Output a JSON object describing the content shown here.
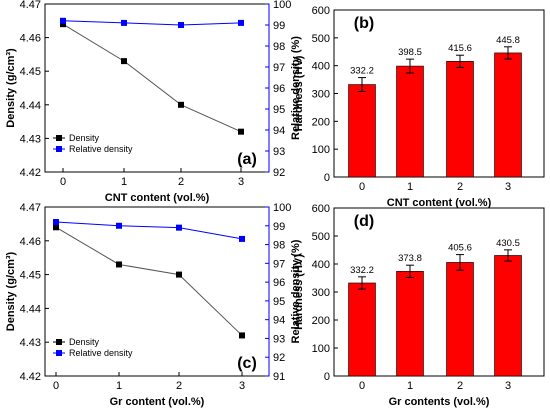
{
  "chart_data": [
    {
      "panel": "(a)",
      "type": "line",
      "categories": [
        "0",
        "1",
        "2",
        "3"
      ],
      "x": [
        0,
        1,
        2,
        3
      ],
      "xlabel": "CNT content (vol.%)",
      "ylabel_left": "Density (g/cm³)",
      "ylabel_right": "Relative density (%)",
      "ylim_left": [
        4.42,
        4.47
      ],
      "yticks_left": [
        "4.42",
        "4.43",
        "4.44",
        "4.45",
        "4.46",
        "4.47"
      ],
      "ylim_right": [
        92,
        100
      ],
      "yticks_right": [
        "92",
        "93",
        "94",
        "95",
        "96",
        "97",
        "98",
        "99",
        "100"
      ],
      "series": [
        {
          "name": "Density",
          "axis": "left",
          "color": "#000000",
          "values": [
            4.464,
            4.453,
            4.44,
            4.432
          ]
        },
        {
          "name": "Relative density",
          "axis": "right",
          "color": "#0000ff",
          "values": [
            99.2,
            99.1,
            99.0,
            99.1
          ]
        }
      ],
      "legend_position": "bottom-left"
    },
    {
      "panel": "(b)",
      "type": "bar",
      "categories": [
        "0",
        "1",
        "2",
        "3"
      ],
      "values": [
        332.2,
        398.5,
        415.6,
        445.8
      ],
      "errors": [
        25,
        25,
        22,
        22
      ],
      "data_labels": [
        "332.2",
        "398.5",
        "415.6",
        "445.8"
      ],
      "xlabel": "CNT content (vol.%)",
      "ylabel": "Hardness (HV)",
      "ylim": [
        0,
        600
      ],
      "yticks": [
        "0",
        "100",
        "200",
        "300",
        "400",
        "500",
        "600"
      ],
      "color": "#ff0000"
    },
    {
      "panel": "(c)",
      "type": "line",
      "categories": [
        "0",
        "1",
        "2",
        "3"
      ],
      "x": [
        0,
        1,
        2,
        3
      ],
      "xlabel": "Gr content (vol.%)",
      "ylabel_left": "Density (g/cm³)",
      "ylabel_right": "Relative density (%)",
      "ylim_left": [
        4.42,
        4.47
      ],
      "yticks_left": [
        "4.42",
        "4.43",
        "4.44",
        "4.45",
        "4.46",
        "4.47"
      ],
      "ylim_right": [
        91,
        100
      ],
      "yticks_right": [
        "91",
        "92",
        "93",
        "94",
        "95",
        "96",
        "97",
        "98",
        "99",
        "100"
      ],
      "series": [
        {
          "name": "Density",
          "axis": "left",
          "color": "#000000",
          "values": [
            4.464,
            4.453,
            4.45,
            4.432
          ]
        },
        {
          "name": "Relative density",
          "axis": "right",
          "color": "#0000ff",
          "values": [
            99.2,
            99.0,
            98.9,
            98.3
          ]
        }
      ],
      "legend_position": "bottom-left"
    },
    {
      "panel": "(d)",
      "type": "bar",
      "categories": [
        "0",
        "1",
        "2",
        "3"
      ],
      "values": [
        332.2,
        373.8,
        405.6,
        430.5
      ],
      "errors": [
        22,
        22,
        28,
        20
      ],
      "data_labels": [
        "332.2",
        "373.8",
        "405.6",
        "430.5"
      ],
      "xlabel": "Gr contents (vol.%)",
      "ylabel": "Hardness (HV)",
      "ylim": [
        0,
        600
      ],
      "yticks": [
        "0",
        "100",
        "200",
        "300",
        "400",
        "500",
        "600"
      ],
      "color": "#ff0000"
    }
  ]
}
